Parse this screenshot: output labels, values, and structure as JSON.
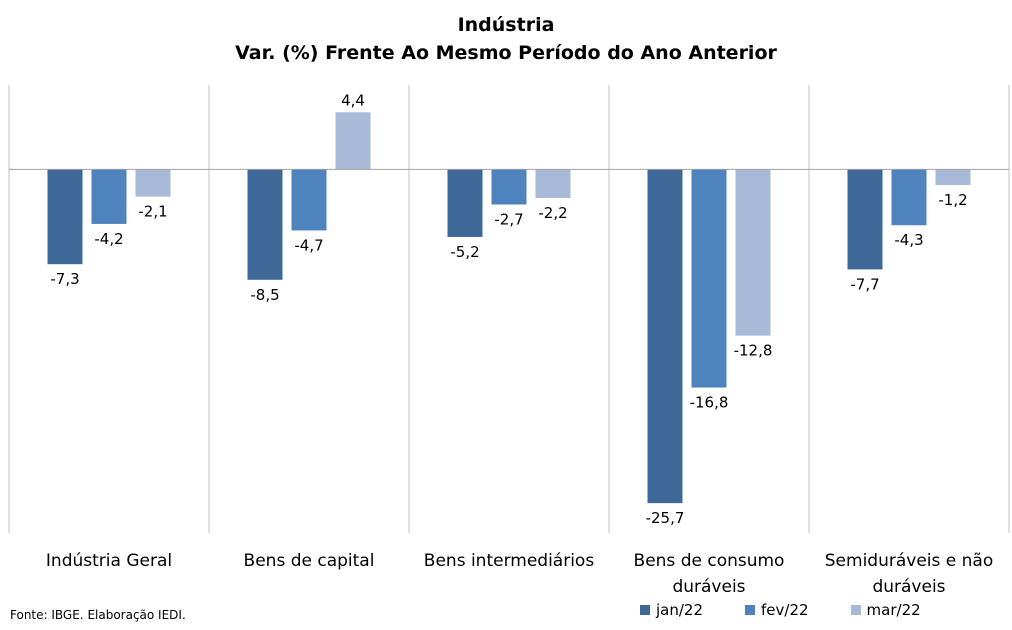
{
  "chart_data": {
    "type": "bar",
    "title": "Indústria",
    "subtitle": "Var. (%) Frente Ao Mesmo Período do Ano Anterior",
    "categories": [
      "Indústria Geral",
      "Bens de capital",
      "Bens intermediários",
      "Bens de consumo duráveis",
      "Semiduráveis e não duráveis"
    ],
    "series": [
      {
        "name": "jan/22",
        "color": "#3e6898",
        "values": [
          -7.3,
          -8.5,
          -5.2,
          -25.7,
          -7.7
        ],
        "labels": [
          "-7,3",
          "-8,5",
          "-5,2",
          "-25,7",
          "-7,7"
        ]
      },
      {
        "name": "fev/22",
        "color": "#4f83be",
        "values": [
          -4.2,
          -4.7,
          -2.7,
          -16.8,
          -4.3
        ],
        "labels": [
          "-4,2",
          "-4,7",
          "-2,7",
          "-16,8",
          "-4,3"
        ]
      },
      {
        "name": "mar/22",
        "color": "#a9b9d8",
        "values": [
          -2.1,
          4.4,
          -2.2,
          -12.8,
          -1.2
        ],
        "labels": [
          "-2,1",
          "4,4",
          "-2,2",
          "-12,8",
          "-1,2"
        ]
      }
    ],
    "ylim": [
      -28,
      6.5
    ],
    "grid": false,
    "legend": "bottom-right",
    "source": "Fonte: IBGE. Elaboração IEDI."
  }
}
